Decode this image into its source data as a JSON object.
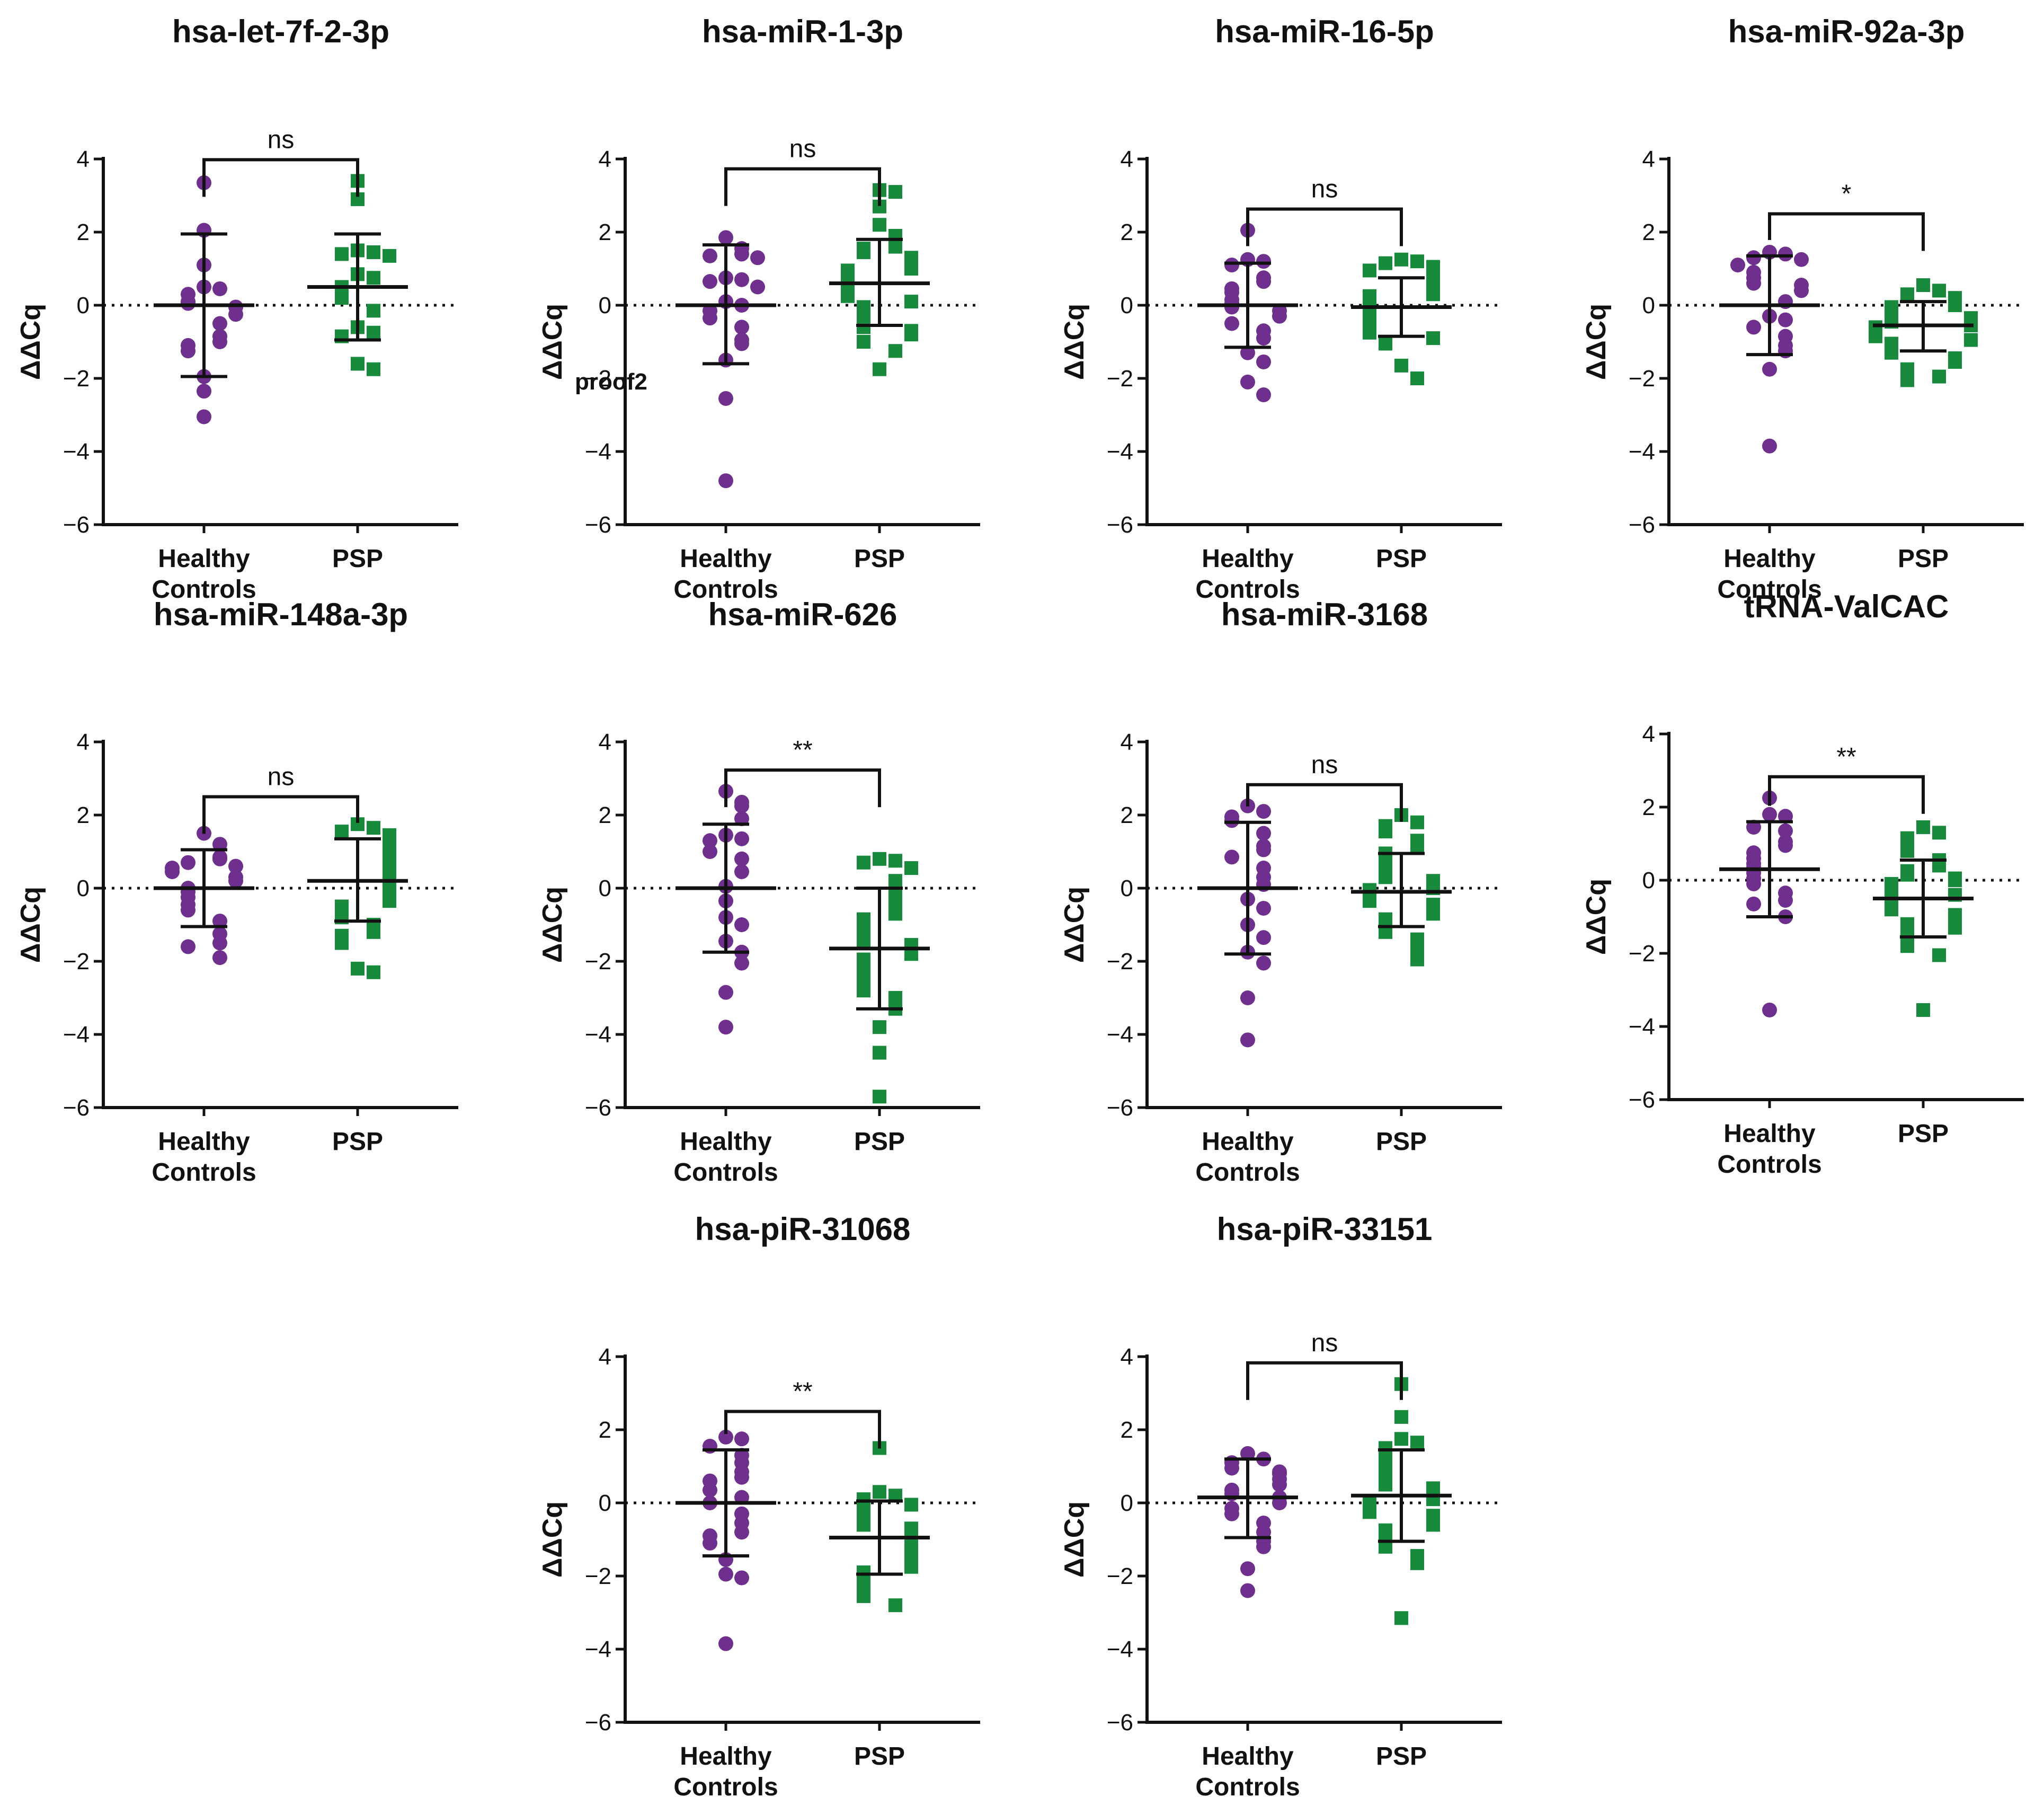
{
  "figure": {
    "watermark": "proof2"
  },
  "colors": {
    "healthy": "#6e2f8e",
    "psp": "#178a3c",
    "axis": "#111111"
  },
  "chart_data": [
    {
      "type": "scatter",
      "title": "hsa-let-7f-2-3p",
      "ylabel": "ΔΔCq",
      "ylim": [
        -6,
        4
      ],
      "yticks": [
        4,
        2,
        0,
        -2,
        -4,
        -6
      ],
      "categories": [
        "Healthy\nControls",
        "PSP"
      ],
      "significance": "ns",
      "series": [
        {
          "name": "Healthy Controls",
          "mean": 0.0,
          "sd_upper": 1.95,
          "sd_lower": -1.95,
          "values": [
            3.35,
            2.05,
            1.1,
            0.5,
            0.45,
            0.3,
            0.1,
            0.05,
            -0.05,
            -0.25,
            -0.5,
            -0.85,
            -1.0,
            -1.1,
            -1.25,
            -1.95,
            -2.35,
            -3.05
          ]
        },
        {
          "name": "PSP",
          "mean": 0.5,
          "sd_upper": 1.95,
          "sd_lower": -0.95,
          "values": [
            3.4,
            2.9,
            1.5,
            1.45,
            1.4,
            1.35,
            0.85,
            0.75,
            0.5,
            0.45,
            0.2,
            -0.15,
            -0.6,
            -0.75,
            -0.85,
            -1.6,
            -1.75
          ]
        }
      ]
    },
    {
      "type": "scatter",
      "title": "hsa-miR-1-3p",
      "ylabel": "ΔΔCq",
      "ylim": [
        -6,
        4
      ],
      "yticks": [
        4,
        2,
        0,
        -2,
        -4,
        -6
      ],
      "categories": [
        "Healthy\nControls",
        "PSP"
      ],
      "significance": "ns",
      "series": [
        {
          "name": "Healthy Controls",
          "mean": 0.0,
          "sd_upper": 1.65,
          "sd_lower": -1.6,
          "values": [
            1.85,
            1.55,
            1.4,
            1.35,
            1.3,
            0.75,
            0.7,
            0.65,
            0.5,
            0.1,
            0.0,
            -0.15,
            -0.35,
            -0.6,
            -0.95,
            -1.05,
            -1.5,
            -2.55,
            -4.8
          ]
        },
        {
          "name": "PSP",
          "mean": 0.6,
          "sd_upper": 1.8,
          "sd_lower": -0.55,
          "values": [
            3.15,
            3.1,
            2.7,
            2.2,
            1.9,
            1.6,
            1.55,
            1.45,
            1.3,
            1.2,
            1.1,
            1.0,
            0.95,
            0.85,
            0.8,
            0.7,
            0.6,
            0.5,
            0.45,
            0.35,
            0.25,
            0.1,
            -0.05,
            -0.2,
            -0.35,
            -0.5,
            -0.6,
            -0.7,
            -0.8,
            -1.0,
            -1.25,
            -1.75
          ]
        }
      ]
    },
    {
      "type": "scatter",
      "title": "hsa-miR-16-5p",
      "ylabel": "ΔΔCq",
      "ylim": [
        -6,
        4
      ],
      "yticks": [
        4,
        2,
        0,
        -2,
        -4,
        -6
      ],
      "categories": [
        "Healthy\nControls",
        "PSP"
      ],
      "significance": "ns",
      "series": [
        {
          "name": "Healthy Controls",
          "mean": 0.0,
          "sd_upper": 1.15,
          "sd_lower": -1.15,
          "values": [
            2.05,
            1.25,
            1.2,
            1.1,
            0.75,
            0.65,
            0.45,
            0.35,
            0.15,
            0.05,
            -0.05,
            -0.15,
            -0.3,
            -0.5,
            -0.7,
            -0.9,
            -1.3,
            -1.55,
            -2.1,
            -2.45
          ]
        },
        {
          "name": "PSP",
          "mean": -0.05,
          "sd_upper": 0.75,
          "sd_lower": -0.85,
          "values": [
            1.25,
            1.2,
            1.15,
            1.05,
            0.95,
            0.8,
            0.7,
            0.6,
            0.5,
            0.4,
            0.3,
            0.25,
            0.15,
            0.1,
            0.0,
            -0.1,
            -0.15,
            -0.25,
            -0.35,
            -0.45,
            -0.5,
            -0.6,
            -0.65,
            -0.75,
            -0.9,
            -1.05,
            -1.65,
            -2.0
          ]
        }
      ]
    },
    {
      "type": "scatter",
      "title": "hsa-miR-92a-3p",
      "ylabel": "ΔΔCq",
      "ylim": [
        -6,
        4
      ],
      "yticks": [
        4,
        2,
        0,
        -2,
        -4,
        -6
      ],
      "categories": [
        "Healthy\nControls",
        "PSP"
      ],
      "significance": "*",
      "series": [
        {
          "name": "Healthy Controls",
          "mean": 0.0,
          "sd_upper": 1.35,
          "sd_lower": -1.35,
          "values": [
            1.45,
            1.4,
            1.3,
            1.25,
            1.1,
            0.9,
            0.75,
            0.6,
            0.55,
            0.4,
            0.1,
            -0.3,
            -0.4,
            -0.6,
            -0.85,
            -1.1,
            -1.25,
            -1.75,
            -3.85
          ]
        },
        {
          "name": "PSP",
          "mean": -0.55,
          "sd_upper": 0.1,
          "sd_lower": -1.25,
          "values": [
            0.55,
            0.4,
            0.3,
            0.2,
            0.1,
            0.0,
            -0.05,
            -0.15,
            -0.25,
            -0.3,
            -0.35,
            -0.45,
            -0.5,
            -0.55,
            -0.6,
            -0.65,
            -0.7,
            -0.8,
            -0.85,
            -0.95,
            -1.05,
            -1.1,
            -1.2,
            -1.3,
            -1.45,
            -1.55,
            -1.75,
            -1.95,
            -2.05
          ]
        }
      ]
    },
    {
      "type": "scatter",
      "title": "hsa-miR-148a-3p",
      "ylabel": "ΔΔCq",
      "ylim": [
        -6,
        4
      ],
      "yticks": [
        4,
        2,
        0,
        -2,
        -4,
        -6
      ],
      "categories": [
        "Healthy\nControls",
        "PSP"
      ],
      "significance": "ns",
      "series": [
        {
          "name": "Healthy Controls",
          "mean": 0.0,
          "sd_upper": 1.05,
          "sd_lower": -1.05,
          "values": [
            1.5,
            1.2,
            0.85,
            0.8,
            0.7,
            0.6,
            0.55,
            0.45,
            0.3,
            0.2,
            0.0,
            -0.1,
            -0.25,
            -0.45,
            -0.6,
            -0.9,
            -1.25,
            -1.5,
            -1.6,
            -1.9
          ]
        },
        {
          "name": "PSP",
          "mean": 0.2,
          "sd_upper": 1.35,
          "sd_lower": -0.9,
          "values": [
            1.75,
            1.65,
            1.55,
            1.45,
            1.35,
            1.2,
            1.1,
            1.0,
            0.9,
            0.8,
            0.7,
            0.55,
            0.45,
            0.35,
            0.2,
            0.1,
            0.0,
            -0.1,
            -0.2,
            -0.35,
            -0.5,
            -0.6,
            -0.8,
            -1.0,
            -1.2,
            -1.3,
            -1.5,
            -2.2,
            -2.3
          ]
        }
      ]
    },
    {
      "type": "scatter",
      "title": "hsa-miR-626",
      "ylabel": "ΔΔCq",
      "ylim": [
        -6,
        4
      ],
      "yticks": [
        4,
        2,
        0,
        -2,
        -4,
        -6
      ],
      "categories": [
        "Healthy\nControls",
        "PSP"
      ],
      "significance": "**",
      "series": [
        {
          "name": "Healthy Controls",
          "mean": 0.0,
          "sd_upper": 1.75,
          "sd_lower": -1.75,
          "values": [
            2.65,
            2.35,
            2.25,
            1.9,
            1.45,
            1.35,
            1.3,
            1.0,
            0.8,
            0.45,
            0.05,
            -0.35,
            -0.8,
            -1.0,
            -1.45,
            -1.75,
            -2.05,
            -2.85,
            -3.8
          ]
        },
        {
          "name": "PSP",
          "mean": -1.65,
          "sd_upper": 0.0,
          "sd_lower": -3.3,
          "values": [
            0.8,
            0.75,
            0.7,
            0.55,
            0.2,
            0.0,
            -0.3,
            -0.5,
            -0.7,
            -0.85,
            -1.0,
            -1.2,
            -1.3,
            -1.45,
            -1.55,
            -1.65,
            -1.8,
            -1.95,
            -2.1,
            -2.25,
            -2.45,
            -2.6,
            -2.8,
            -3.0,
            -3.3,
            -3.8,
            -4.5,
            -5.7
          ]
        }
      ]
    },
    {
      "type": "scatter",
      "title": "hsa-miR-3168",
      "ylabel": "ΔΔCq",
      "ylim": [
        -6,
        4
      ],
      "yticks": [
        4,
        2,
        0,
        -2,
        -4,
        -6
      ],
      "categories": [
        "Healthy\nControls",
        "PSP"
      ],
      "significance": "ns",
      "series": [
        {
          "name": "Healthy Controls",
          "mean": 0.0,
          "sd_upper": 1.8,
          "sd_lower": -1.8,
          "values": [
            2.25,
            2.1,
            1.95,
            1.85,
            1.5,
            1.15,
            1.05,
            0.85,
            0.55,
            0.3,
            0.1,
            -0.3,
            -0.55,
            -1.0,
            -1.35,
            -1.75,
            -2.05,
            -3.0,
            -4.15
          ]
        },
        {
          "name": "PSP",
          "mean": -0.1,
          "sd_upper": 0.95,
          "sd_lower": -1.05,
          "values": [
            2.0,
            1.8,
            1.7,
            1.55,
            1.3,
            1.1,
            0.95,
            0.85,
            0.7,
            0.55,
            0.4,
            0.3,
            0.2,
            0.1,
            0.0,
            -0.05,
            -0.15,
            -0.25,
            -0.35,
            -0.45,
            -0.55,
            -0.7,
            -0.85,
            -1.0,
            -1.2,
            -1.4,
            -1.65,
            -1.95
          ]
        }
      ]
    },
    {
      "type": "scatter",
      "title": "tRNA-ValCAC",
      "ylabel": "ΔΔCq",
      "ylim": [
        -6,
        4
      ],
      "yticks": [
        4,
        2,
        0,
        -2,
        -4,
        -6
      ],
      "categories": [
        "Healthy\nControls",
        "PSP"
      ],
      "significance": "**",
      "series": [
        {
          "name": "Healthy Controls",
          "mean": 0.3,
          "sd_upper": 1.6,
          "sd_lower": -1.0,
          "values": [
            2.25,
            1.8,
            1.75,
            1.45,
            1.35,
            1.05,
            0.95,
            0.75,
            0.6,
            0.45,
            0.35,
            0.2,
            0.05,
            -0.1,
            -0.35,
            -0.55,
            -0.65,
            -1.0,
            -3.55
          ]
        },
        {
          "name": "PSP",
          "mean": -0.5,
          "sd_upper": 0.55,
          "sd_lower": -1.55,
          "values": [
            1.45,
            1.3,
            1.15,
            0.95,
            0.8,
            0.55,
            0.4,
            0.25,
            0.15,
            0.05,
            0.0,
            -0.1,
            -0.2,
            -0.3,
            -0.4,
            -0.45,
            -0.55,
            -0.6,
            -0.7,
            -0.8,
            -0.95,
            -1.05,
            -1.2,
            -1.3,
            -1.5,
            -1.6,
            -1.8,
            -2.05,
            -3.55
          ]
        }
      ]
    },
    {
      "type": "scatter",
      "title": "hsa-piR-31068",
      "ylabel": "ΔΔCq",
      "ylim": [
        -6,
        4
      ],
      "yticks": [
        4,
        2,
        0,
        -2,
        -4,
        -6
      ],
      "categories": [
        "Healthy\nControls",
        "PSP"
      ],
      "significance": "**",
      "series": [
        {
          "name": "Healthy Controls",
          "mean": 0.0,
          "sd_upper": 1.45,
          "sd_lower": -1.45,
          "values": [
            1.8,
            1.75,
            1.55,
            1.3,
            1.1,
            0.85,
            0.7,
            0.6,
            0.35,
            0.15,
            0.0,
            -0.3,
            -0.55,
            -0.8,
            -0.9,
            -1.1,
            -1.55,
            -1.95,
            -2.05,
            -3.85
          ]
        },
        {
          "name": "PSP",
          "mean": -0.95,
          "sd_upper": 0.05,
          "sd_lower": -1.95,
          "values": [
            1.5,
            0.3,
            0.2,
            0.1,
            -0.05,
            -0.2,
            -0.35,
            -0.5,
            -0.6,
            -0.7,
            -0.8,
            -0.9,
            -1.0,
            -1.1,
            -1.2,
            -1.3,
            -1.4,
            -1.5,
            -1.6,
            -1.75,
            -1.9,
            -2.05,
            -2.2,
            -2.4,
            -2.55,
            -2.8
          ]
        }
      ]
    },
    {
      "type": "scatter",
      "title": "hsa-piR-33151",
      "ylabel": "ΔΔCq",
      "ylim": [
        -6,
        4
      ],
      "yticks": [
        4,
        2,
        0,
        -2,
        -4,
        -6
      ],
      "categories": [
        "Healthy\nControls",
        "PSP"
      ],
      "significance": "ns",
      "series": [
        {
          "name": "Healthy Controls",
          "mean": 0.15,
          "sd_upper": 1.2,
          "sd_lower": -0.95,
          "values": [
            1.35,
            1.2,
            1.1,
            0.95,
            0.85,
            0.8,
            0.65,
            0.5,
            0.35,
            0.25,
            0.15,
            0.0,
            -0.15,
            -0.3,
            -0.55,
            -0.8,
            -1.05,
            -1.2,
            -1.8,
            -2.4
          ]
        },
        {
          "name": "PSP",
          "mean": 0.2,
          "sd_upper": 1.45,
          "sd_lower": -1.05,
          "values": [
            3.25,
            2.35,
            1.75,
            1.65,
            1.5,
            1.35,
            1.2,
            1.05,
            0.9,
            0.75,
            0.6,
            0.5,
            0.4,
            0.3,
            0.2,
            0.1,
            0.05,
            -0.05,
            -0.15,
            -0.25,
            -0.35,
            -0.5,
            -0.6,
            -0.75,
            -0.9,
            -1.05,
            -1.2,
            -1.45,
            -1.65,
            -3.15
          ]
        }
      ]
    }
  ]
}
